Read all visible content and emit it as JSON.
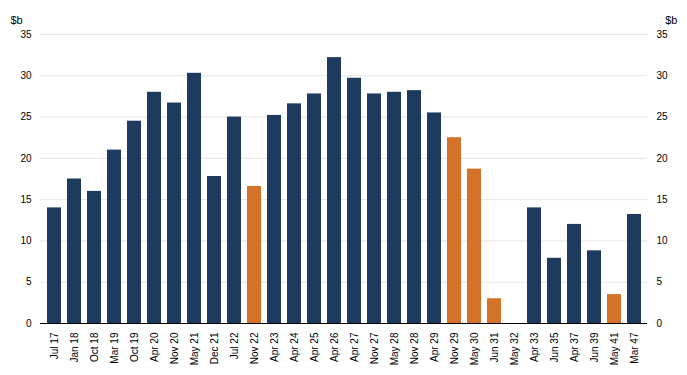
{
  "chart_data": {
    "type": "bar",
    "categories": [
      "Jul 17",
      "Jan 18",
      "Oct 18",
      "Mar 19",
      "Oct 19",
      "Apr 20",
      "Nov 20",
      "May 21",
      "Dec 21",
      "Jul 22",
      "Nov 22",
      "Apr 23",
      "Apr 24",
      "Apr 25",
      "Apr 26",
      "Apr 27",
      "Nov 27",
      "May 28",
      "Nov 28",
      "Apr 29",
      "Nov 29",
      "May 30",
      "Jun 31",
      "May 32",
      "Apr 33",
      "Jun 35",
      "Apr 37",
      "Jun 39",
      "May 41",
      "Mar 47"
    ],
    "values": [
      14,
      17.5,
      16,
      21,
      24.5,
      28,
      26.7,
      30.3,
      17.8,
      25,
      16.6,
      25.2,
      26.6,
      27.8,
      32.2,
      29.7,
      27.8,
      28,
      28.2,
      25.5,
      22.5,
      18.7,
      3.0,
      0,
      14,
      7.9,
      12,
      8.8,
      3.5,
      13.2
    ],
    "colors": [
      "#1e3a5f",
      "#1e3a5f",
      "#1e3a5f",
      "#1e3a5f",
      "#1e3a5f",
      "#1e3a5f",
      "#1e3a5f",
      "#1e3a5f",
      "#1e3a5f",
      "#1e3a5f",
      "#d4722a",
      "#1e3a5f",
      "#1e3a5f",
      "#1e3a5f",
      "#1e3a5f",
      "#1e3a5f",
      "#1e3a5f",
      "#1e3a5f",
      "#1e3a5f",
      "#1e3a5f",
      "#d4722a",
      "#d4722a",
      "#d4722a",
      "#1e3a5f",
      "#1e3a5f",
      "#1e3a5f",
      "#1e3a5f",
      "#1e3a5f",
      "#d4722a",
      "#1e3a5f"
    ],
    "ylim": [
      0,
      35
    ],
    "yticks": [
      0,
      5,
      10,
      15,
      20,
      25,
      30,
      35
    ],
    "ylabel": "$b",
    "y2lim": [
      0,
      35
    ],
    "y2ticks": [
      0,
      5,
      10,
      15,
      20,
      25,
      30,
      35
    ],
    "y2label": "$b",
    "grid": true
  }
}
